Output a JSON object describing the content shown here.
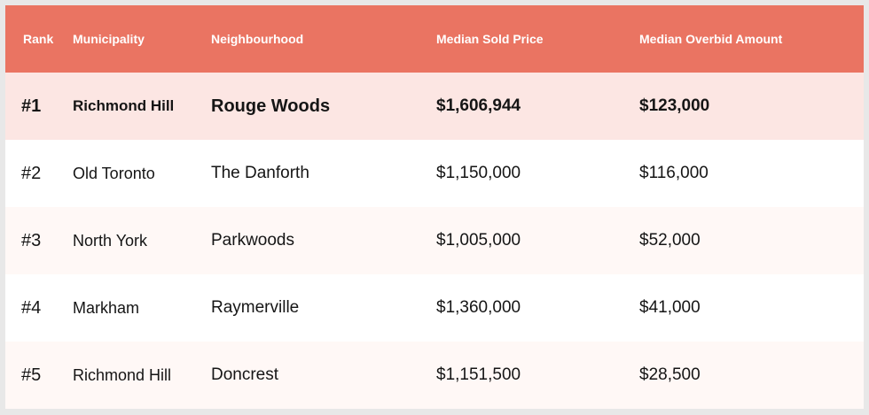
{
  "table": {
    "headers": {
      "rank": "Rank",
      "municipality": "Municipality",
      "neighbourhood": "Neighbourhood",
      "median_sold_price": "Median Sold Price",
      "median_overbid_amount": "Median Overbid Amount"
    },
    "rows": [
      {
        "rank": "#1",
        "municipality": "Richmond Hill",
        "neighbourhood": "Rouge Woods",
        "median_sold_price": "$1,606,944",
        "median_overbid_amount": "$123,000"
      },
      {
        "rank": "#2",
        "municipality": "Old Toronto",
        "neighbourhood": "The Danforth",
        "median_sold_price": "$1,150,000",
        "median_overbid_amount": "$116,000"
      },
      {
        "rank": "#3",
        "municipality": "North York",
        "neighbourhood": "Parkwoods",
        "median_sold_price": "$1,005,000",
        "median_overbid_amount": "$52,000"
      },
      {
        "rank": "#4",
        "municipality": "Markham",
        "neighbourhood": "Raymerville",
        "median_sold_price": "$1,360,000",
        "median_overbid_amount": "$41,000"
      },
      {
        "rank": "#5",
        "municipality": "Richmond Hill",
        "neighbourhood": "Doncrest",
        "median_sold_price": "$1,151,500",
        "median_overbid_amount": "$28,500"
      }
    ]
  },
  "colors": {
    "header_background": "#ea7462",
    "highlight_row": "#fce6e3",
    "alternate_row": "#fff8f6"
  }
}
